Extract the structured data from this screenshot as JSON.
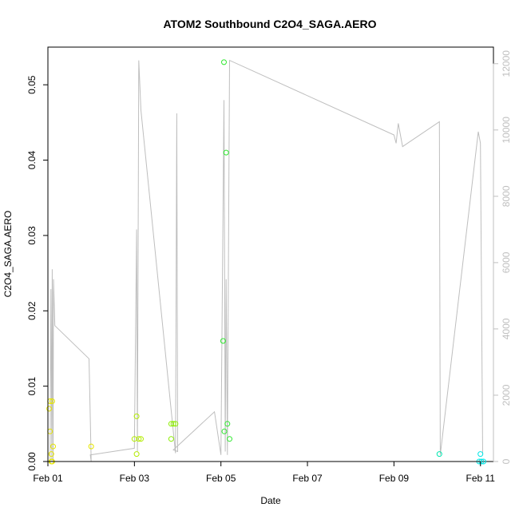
{
  "chart_data": {
    "type": "scatter",
    "title": "ATOM2 Southbound C2O4_SAGA.AERO",
    "xlabel": "Date",
    "ylabel": "C2O4_SAGA.AERO",
    "xlim": [
      0,
      10.3
    ],
    "ylim": [
      0,
      0.055
    ],
    "y2lim": [
      0,
      12500
    ],
    "x_ticks": [
      {
        "value": 0,
        "label": "Feb 01"
      },
      {
        "value": 2,
        "label": "Feb 03"
      },
      {
        "value": 4,
        "label": "Feb 05"
      },
      {
        "value": 6,
        "label": "Feb 07"
      },
      {
        "value": 8,
        "label": "Feb 09"
      },
      {
        "value": 10,
        "label": "Feb 11"
      }
    ],
    "y_ticks": [
      {
        "value": 0.0,
        "label": "0.00"
      },
      {
        "value": 0.01,
        "label": "0.01"
      },
      {
        "value": 0.02,
        "label": "0.02"
      },
      {
        "value": 0.03,
        "label": "0.03"
      },
      {
        "value": 0.04,
        "label": "0.04"
      },
      {
        "value": 0.05,
        "label": "0.05"
      }
    ],
    "y2_ticks": [
      {
        "value": 0,
        "label": "0"
      },
      {
        "value": 2000,
        "label": "2000"
      },
      {
        "value": 4000,
        "label": "4000"
      },
      {
        "value": 6000,
        "label": "6000"
      },
      {
        "value": 8000,
        "label": "8000"
      },
      {
        "value": 10000,
        "label": "10000"
      },
      {
        "value": 12000,
        "label": "12000"
      }
    ],
    "points": [
      {
        "x": 0.05,
        "y": 0.008,
        "color": "#e6e600"
      },
      {
        "x": 0.1,
        "y": 0.008,
        "color": "#e6e600"
      },
      {
        "x": 0.03,
        "y": 0.007,
        "color": "#e6e600"
      },
      {
        "x": 0.05,
        "y": 0.004,
        "color": "#e6e600"
      },
      {
        "x": 0.12,
        "y": 0.002,
        "color": "#e6e600"
      },
      {
        "x": 0.08,
        "y": 0.001,
        "color": "#e6e600"
      },
      {
        "x": 0.1,
        "y": 0.0,
        "color": "#e6e600"
      },
      {
        "x": 0.08,
        "y": 0.0,
        "color": "#e6e600"
      },
      {
        "x": 1.0,
        "y": 0.002,
        "color": "#e6e600"
      },
      {
        "x": 2.05,
        "y": 0.006,
        "color": "#b3ec00"
      },
      {
        "x": 2.0,
        "y": 0.003,
        "color": "#b3ec00"
      },
      {
        "x": 2.1,
        "y": 0.003,
        "color": "#b3ec00"
      },
      {
        "x": 2.15,
        "y": 0.003,
        "color": "#b3ec00"
      },
      {
        "x": 2.05,
        "y": 0.001,
        "color": "#b3ec00"
      },
      {
        "x": 2.85,
        "y": 0.005,
        "color": "#8cee00"
      },
      {
        "x": 2.9,
        "y": 0.005,
        "color": "#8cee00"
      },
      {
        "x": 2.95,
        "y": 0.005,
        "color": "#8cee00"
      },
      {
        "x": 2.85,
        "y": 0.003,
        "color": "#8cee00"
      },
      {
        "x": 4.07,
        "y": 0.053,
        "color": "#2ee82e"
      },
      {
        "x": 4.12,
        "y": 0.041,
        "color": "#2ee82e"
      },
      {
        "x": 4.05,
        "y": 0.016,
        "color": "#2ee82e"
      },
      {
        "x": 4.15,
        "y": 0.005,
        "color": "#2ee82e"
      },
      {
        "x": 4.08,
        "y": 0.004,
        "color": "#2ee82e"
      },
      {
        "x": 4.2,
        "y": 0.003,
        "color": "#2ee82e"
      },
      {
        "x": 9.05,
        "y": 0.001,
        "color": "#00e6b0"
      },
      {
        "x": 10.0,
        "y": 0.001,
        "color": "#00e6e6"
      },
      {
        "x": 9.97,
        "y": 0.0,
        "color": "#00e6e6"
      },
      {
        "x": 10.02,
        "y": 0.0,
        "color": "#00e6e6"
      },
      {
        "x": 10.07,
        "y": 0.0,
        "color": "#00e6e6"
      }
    ],
    "line_series": {
      "color": "#bebebe",
      "points": [
        [
          0.05,
          0
        ],
        [
          0.07,
          5200
        ],
        [
          0.09,
          0
        ],
        [
          0.1,
          5800
        ],
        [
          0.12,
          0
        ],
        [
          0.13,
          5500
        ],
        [
          0.16,
          4100
        ],
        [
          0.95,
          3100
        ],
        [
          1.0,
          0
        ],
        [
          0.98,
          200
        ],
        [
          2.0,
          400
        ],
        [
          2.05,
          7000
        ],
        [
          2.07,
          300
        ],
        [
          2.1,
          12100
        ],
        [
          2.15,
          10600
        ],
        [
          2.95,
          250
        ],
        [
          2.98,
          10500
        ],
        [
          3.0,
          300
        ],
        [
          2.9,
          350
        ],
        [
          3.85,
          1500
        ],
        [
          4.0,
          200
        ],
        [
          4.07,
          10900
        ],
        [
          4.1,
          300
        ],
        [
          4.12,
          5500
        ],
        [
          4.15,
          200
        ],
        [
          4.2,
          12100
        ],
        [
          8.0,
          9850
        ],
        [
          8.05,
          9600
        ],
        [
          8.1,
          10200
        ],
        [
          8.2,
          9500
        ],
        [
          9.05,
          10250
        ],
        [
          9.07,
          200
        ],
        [
          9.95,
          9950
        ],
        [
          10.0,
          9600
        ],
        [
          10.05,
          200
        ]
      ]
    }
  }
}
